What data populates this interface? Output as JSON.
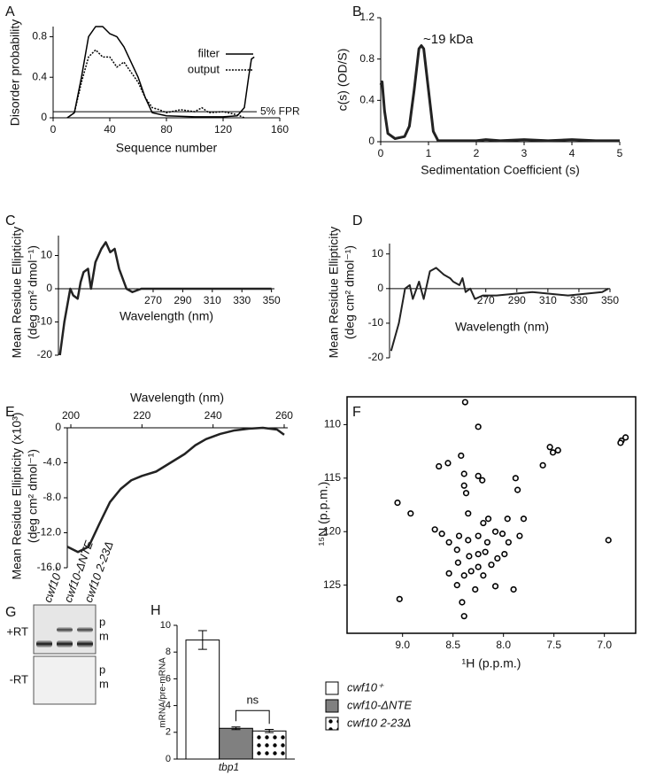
{
  "chart_data": [
    {
      "panel": "A",
      "type": "line",
      "xlabel": "Sequence number",
      "ylabel": [
        "Disorder probability"
      ],
      "xlim": [
        0,
        160
      ],
      "xticks": [
        0,
        40,
        80,
        120,
        160
      ],
      "ylim": [
        0,
        0.9
      ],
      "yticks": [
        0,
        0.4,
        0.8
      ],
      "xaxis": "bottom",
      "legend": "upper right",
      "threshold": 0.06,
      "threshold_label": "5% FPR",
      "line_width": 1.5,
      "series": [
        {
          "name": "filter",
          "color": "#000000",
          "dash": "solid",
          "x": [
            10,
            15,
            20,
            25,
            30,
            35,
            40,
            45,
            50,
            55,
            60,
            65,
            70,
            80,
            100,
            120,
            130,
            135,
            138,
            140,
            142
          ],
          "values": [
            0,
            0.05,
            0.4,
            0.8,
            0.9,
            0.9,
            0.83,
            0.8,
            0.7,
            0.55,
            0.4,
            0.2,
            0.05,
            0.02,
            0.01,
            0.01,
            0.02,
            0.1,
            0.4,
            0.58,
            0.6
          ]
        },
        {
          "name": "output",
          "color": "#000000",
          "dash": "dotted",
          "x": [
            10,
            15,
            20,
            25,
            30,
            35,
            40,
            45,
            50,
            55,
            60,
            65,
            70,
            75,
            80,
            90,
            100,
            105,
            110,
            120,
            130,
            135
          ],
          "values": [
            0,
            0.05,
            0.35,
            0.6,
            0.67,
            0.6,
            0.6,
            0.5,
            0.55,
            0.45,
            0.35,
            0.2,
            0.1,
            0.08,
            0.05,
            0.08,
            0.06,
            0.1,
            0.05,
            0.06,
            0.03,
            0
          ]
        }
      ]
    },
    {
      "panel": "B",
      "type": "line",
      "xlabel": "Sedimentation Coefficient (s)",
      "ylabel": [
        "c(s) (OD/S)"
      ],
      "xlim": [
        0,
        5
      ],
      "xticks": [
        0,
        1,
        2,
        3,
        4,
        5
      ],
      "ylim": [
        0,
        1.2
      ],
      "yticks": [
        0,
        0.4,
        0.8,
        1.2
      ],
      "xaxis": "bottom",
      "annotation": "~19 kDa",
      "line_width": 3,
      "series": [
        {
          "color": "#222222",
          "dash": "solid",
          "x": [
            0,
            0.03,
            0.08,
            0.15,
            0.3,
            0.5,
            0.6,
            0.7,
            0.8,
            0.85,
            0.9,
            1.0,
            1.1,
            1.2,
            1.5,
            2,
            2.2,
            2.5,
            3,
            3.5,
            4,
            4.5,
            5
          ],
          "values": [
            0.55,
            0.58,
            0.3,
            0.08,
            0.03,
            0.05,
            0.15,
            0.5,
            0.9,
            0.93,
            0.9,
            0.5,
            0.1,
            0.01,
            0.01,
            0.01,
            0.02,
            0.01,
            0.02,
            0.01,
            0.02,
            0.01,
            0.01
          ]
        }
      ]
    },
    {
      "panel": "C",
      "type": "line",
      "xlabel": "Wavelength (nm)",
      "ylabel": [
        "Mean Residue Ellipticity",
        "(deg cm² dmol⁻¹)"
      ],
      "xlim": [
        206,
        352
      ],
      "xticks": [
        270,
        290,
        310,
        330,
        350
      ],
      "ylim": [
        -20,
        16
      ],
      "yticks": [
        -20,
        -10,
        0,
        10
      ],
      "xaxis": "zero",
      "line_width": 2.5,
      "series": [
        {
          "color": "#222222",
          "dash": "solid",
          "x": [
            207,
            210,
            214,
            216,
            219,
            221,
            223,
            226,
            228,
            231,
            235,
            238,
            241,
            244,
            247,
            252,
            256,
            262,
            275,
            290,
            310,
            330,
            350
          ],
          "values": [
            -20,
            -10,
            0,
            -2,
            -3,
            2,
            5,
            6,
            0,
            8,
            12,
            14,
            11,
            12,
            6,
            0,
            -1,
            0,
            0,
            0,
            0,
            0,
            0
          ]
        }
      ]
    },
    {
      "panel": "D",
      "type": "line",
      "xlabel": "Wavelength (nm)",
      "ylabel": [
        "Mean Residue Ellipticity",
        "(deg cm² dmol⁻¹)"
      ],
      "xlim": [
        208,
        350
      ],
      "xticks": [
        270,
        290,
        310,
        330,
        350
      ],
      "ylim": [
        -20,
        13
      ],
      "yticks": [
        -20,
        -10,
        0,
        10
      ],
      "xaxis": "zero",
      "line_width": 2,
      "series": [
        {
          "color": "#222222",
          "dash": "solid",
          "x": [
            209,
            214,
            218,
            221,
            223,
            227,
            230,
            234,
            238,
            243,
            247,
            249,
            253,
            255,
            257,
            260,
            263,
            268,
            277,
            300,
            323,
            345,
            349
          ],
          "values": [
            -18,
            -10,
            0,
            1,
            -3,
            2,
            -3,
            5,
            6,
            4,
            3,
            2,
            1,
            3,
            -1,
            0,
            -3,
            -2,
            -2,
            -1,
            -2,
            -1,
            0
          ]
        }
      ]
    },
    {
      "panel": "E",
      "type": "line",
      "xlabel": "Wavelength (nm)",
      "ylabel": [
        "Mean Residue Ellipticity (x10³)",
        "(deg cm² dmol⁻¹)"
      ],
      "xlim": [
        199,
        261
      ],
      "xticks": [
        200,
        220,
        240,
        260
      ],
      "ylim": [
        -16,
        0
      ],
      "yticks": [
        0,
        {
          "value": -4,
          "label": "-4.0"
        },
        {
          "value": -8,
          "label": "-8.0"
        },
        {
          "value": -12,
          "label": "-12.0"
        },
        {
          "value": -16,
          "label": "-16.0"
        }
      ],
      "xaxis": "top",
      "line_width": 2.5,
      "series": [
        {
          "color": "#222222",
          "dash": "solid",
          "x": [
            199,
            202,
            205,
            208,
            211,
            214,
            217,
            220,
            224,
            228,
            232,
            235,
            238,
            242,
            246,
            250,
            254,
            258,
            260
          ],
          "values": [
            -13.6,
            -14.2,
            -13.6,
            -11,
            -8.5,
            -7,
            -6,
            -5.5,
            -5,
            -4,
            -3,
            -2,
            -1.3,
            -0.7,
            -0.3,
            -0.1,
            0,
            -0.2,
            -0.8
          ]
        }
      ]
    },
    {
      "panel": "F",
      "type": "scatter",
      "xlabel": "¹H (p.p.m.)",
      "ylabel": [
        "¹⁵N (p.p.m.)"
      ],
      "xlim": [
        9.55,
        6.69
      ],
      "xticks": [
        {
          "value": 9,
          "label": "9.0"
        },
        8.5,
        {
          "value": 8,
          "label": "8.0"
        },
        7.5,
        {
          "value": 7,
          "label": "7.0"
        }
      ],
      "ylim": [
        129.5,
        107.4
      ],
      "yticks": [
        110,
        115,
        120,
        125
      ],
      "frame": true,
      "xaxis": "bottom",
      "series": [
        {
          "color": "#000000",
          "x": [
            8.38,
            8.25,
            8.42,
            8.55,
            8.64,
            8.39,
            8.25,
            8.21,
            8.39,
            8.37,
            7.88,
            7.86,
            9.05,
            8.92,
            8.68,
            8.15,
            7.96,
            8.35,
            8.61,
            8.54,
            8.46,
            8.35,
            8.25,
            8.16,
            8.08,
            8.01,
            7.95,
            8.45,
            8.34,
            8.25,
            8.12,
            8.2,
            8.39,
            8.46,
            8.28,
            8.08,
            7.9,
            9.03,
            8.41,
            8.39,
            8.54,
            7.99,
            7.84,
            7.8,
            8.2,
            7.61,
            7.54,
            7.51,
            7.46,
            6.96,
            6.83,
            6.79,
            6.84,
            8.25,
            8.32,
            8.18,
            8.44,
            8.06
          ],
          "values": [
            107.9,
            110.2,
            112.9,
            113.6,
            113.9,
            114.6,
            114.8,
            115.2,
            115.7,
            116.4,
            115.0,
            116.1,
            117.3,
            118.3,
            119.8,
            118.8,
            118.8,
            118.3,
            120.2,
            121.0,
            121.7,
            120.8,
            120.4,
            121.0,
            120.0,
            120.2,
            121.0,
            122.9,
            122.3,
            122.1,
            123.1,
            124.1,
            124.1,
            125.0,
            125.4,
            125.1,
            125.4,
            126.3,
            126.6,
            127.9,
            123.9,
            122.1,
            120.4,
            118.8,
            119.2,
            113.8,
            112.1,
            112.6,
            112.4,
            120.8,
            111.5,
            111.2,
            111.7,
            123.3,
            123.7,
            121.9,
            120.4,
            122.5
          ]
        }
      ]
    },
    {
      "panel": "H",
      "type": "bar",
      "categories": [
        "tbp1"
      ],
      "ylabel": [
        "mRNA/pre-mRNA"
      ],
      "ylim": [
        0,
        10
      ],
      "yticks": [
        0,
        2,
        4,
        6,
        8,
        10
      ],
      "xaxis": "bottom",
      "annotation": "ns",
      "legend": "right",
      "series": [
        {
          "name": "cwf10⁺",
          "color": "#ffffff",
          "values": [
            8.9
          ],
          "errors": [
            0.7
          ]
        },
        {
          "name": "cwf10-ΔNTE",
          "color": "#808080",
          "values": [
            2.3
          ],
          "errors": [
            0.1
          ]
        },
        {
          "name": "cwf10 2-23Δ",
          "color": "#ffffff",
          "pattern": "dots",
          "values": [
            2.1
          ],
          "errors": [
            0.12
          ]
        }
      ]
    }
  ],
  "gel": {
    "panel": "G",
    "lanes": [
      "cwf10⁺",
      "cwf10-ΔNTE",
      "cwf10 2-23Δ"
    ],
    "rows": [
      {
        "label": "+RT",
        "bands": [
          "p",
          "m"
        ]
      },
      {
        "label": "-RT",
        "bands": [
          "p",
          "m"
        ]
      }
    ]
  }
}
